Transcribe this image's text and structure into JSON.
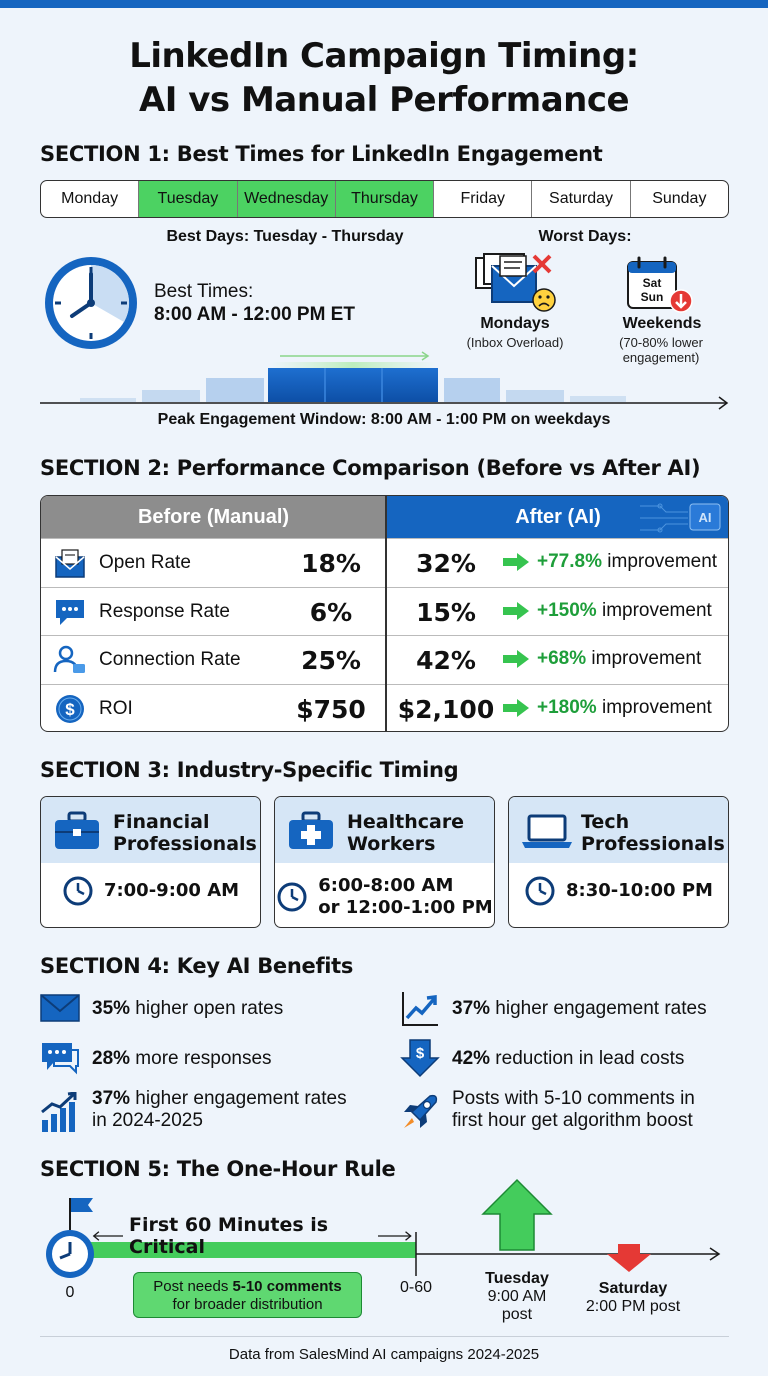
{
  "title_line1": "LinkedIn Campaign Timing:",
  "title_line2": "AI vs Manual Performance",
  "section1": {
    "heading": "SECTION 1: Best Times for LinkedIn Engagement",
    "days": [
      "Monday",
      "Tuesday",
      "Wednesday",
      "Thursday",
      "Friday",
      "Saturday",
      "Sunday"
    ],
    "best_days_label": "Best Days: Tuesday - Thursday",
    "worst_days_label": "Worst Days:",
    "best_times_label": "Best Times:",
    "best_times_value": "8:00 AM - 12:00 PM ET",
    "worst1_title": "Mondays",
    "worst1_sub": "(Inbox Overload)",
    "worst2_title": "Weekends",
    "worst2_sub1": "(70-80% lower",
    "worst2_sub2": "engagement)",
    "cal_line1": "Sat",
    "cal_line2": "Sun",
    "peak_label": "Peak Engagement Window: 8:00 AM - 1:00 PM on weekdays"
  },
  "section2": {
    "heading": "SECTION 2: Performance Comparison (Before vs After AI)",
    "before_header": "Before (Manual)",
    "after_header": "After (AI)",
    "ai_badge": "AI",
    "improvement_word": "improvement",
    "rows": [
      {
        "label": "Open Rate",
        "before": "18%",
        "after": "32%",
        "delta": "+77.8%"
      },
      {
        "label": "Response Rate",
        "before": "6%",
        "after": "15%",
        "delta": "+150%"
      },
      {
        "label": "Connection Rate",
        "before": "25%",
        "after": "42%",
        "delta": "+68%"
      },
      {
        "label": "ROI",
        "before": "$750",
        "after": "$2,100",
        "delta": "+180%"
      }
    ]
  },
  "section3": {
    "heading": "SECTION 3: Industry-Specific Timing",
    "cards": [
      {
        "name1": "Financial",
        "name2": "Professionals",
        "time1": "7:00-9:00 AM",
        "time2": ""
      },
      {
        "name1": "Healthcare",
        "name2": "Workers",
        "time1": "6:00-8:00 AM",
        "time2": "or 12:00-1:00 PM"
      },
      {
        "name1": "Tech",
        "name2": "Professionals",
        "time1": "8:30-10:00 PM",
        "time2": ""
      }
    ]
  },
  "section4": {
    "heading": "SECTION 4: Key AI Benefits",
    "b1_bold": "35%",
    "b1_text": " higher open rates",
    "b2_bold": "28%",
    "b2_text": " more responses",
    "b3_bold": "37%",
    "b3_text": " higher engagement rates",
    "b3_line2": "in 2024-2025",
    "b4_bold": "37%",
    "b4_text": " higher engagement rates",
    "b5_bold": "42%",
    "b5_text": " reduction in lead costs",
    "b6_line1": "Posts with 5-10 comments in",
    "b6_line2": "first hour get algorithm boost"
  },
  "section5": {
    "heading": "SECTION 5: The One-Hour Rule",
    "critical_label": "First 60 Minutes is Critical",
    "note_pre": "Post needs ",
    "note_bold": "5-10 comments",
    "note_line2": "for broader distribution",
    "tick0": "0",
    "tick60": "0-60",
    "tuesday_l1": "Tuesday",
    "tuesday_l2": "9:00 AM",
    "tuesday_l3": "post",
    "saturday_l1": "Saturday",
    "saturday_l2": "2:00 PM post"
  },
  "footer": "Data from SalesMind AI campaigns 2024-2025",
  "colors": {
    "brand_blue": "#1565c0",
    "accent_green": "#4cd262",
    "improve_green": "#1e9e3a",
    "warning_red": "#e53935"
  }
}
